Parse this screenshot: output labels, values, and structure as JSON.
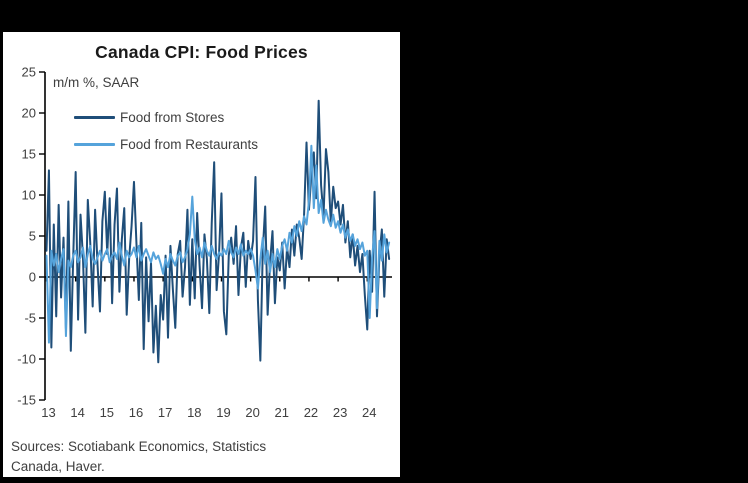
{
  "panel": {
    "background": "#ffffff",
    "surround_color": "#000000"
  },
  "chart_data": {
    "type": "line",
    "title": "Canada CPI: Food Prices",
    "units_label": "m/m %, SAAR",
    "xlabel": "",
    "ylabel": "m/m %, SAAR",
    "ylim": [
      -15,
      25
    ],
    "yticks": [
      25,
      20,
      15,
      10,
      5,
      0,
      -5,
      -10,
      -15
    ],
    "xtick_labels": [
      "13",
      "14",
      "15",
      "16",
      "17",
      "18",
      "19",
      "20",
      "21",
      "22",
      "23",
      "24"
    ],
    "frequency": "monthly",
    "x_start": "2013-01",
    "x_end": "2024-10",
    "grid": false,
    "legend_position": "top-left-inside",
    "axis_color": "#000000",
    "text_color": "#404040",
    "series": [
      {
        "name": "Food from Stores",
        "color": "#1F4E79",
        "values": [
          3.2,
          13.0,
          -8.6,
          6.4,
          -4.8,
          8.8,
          -2.5,
          4.8,
          -6.3,
          9.2,
          -9.0,
          2.5,
          12.8,
          -5.2,
          7.6,
          2.4,
          -6.8,
          9.4,
          4.2,
          -3.6,
          8.2,
          1.5,
          -4.2,
          6.8,
          10.4,
          2.8,
          9.6,
          -3.2,
          6.4,
          10.8,
          -1.8,
          4.6,
          8.4,
          -4.6,
          2.2,
          6.2,
          11.6,
          4.2,
          -2.8,
          6.6,
          -8.8,
          2.4,
          -5.4,
          1.8,
          -9.2,
          -3.5,
          -10.4,
          -2.2,
          -5.2,
          2.6,
          -7.4,
          3.8,
          -1.5,
          -6.2,
          2.8,
          4.4,
          -2.4,
          1.2,
          8.2,
          -3.4,
          4.6,
          -2.6,
          7.8,
          1.4,
          -3.8,
          5.2,
          2.2,
          -4.4,
          6.6,
          14.0,
          -1.6,
          2.8,
          10.2,
          -4.2,
          -7.0,
          2.6,
          4.8,
          1.6,
          6.2,
          -2.2,
          3.6,
          5.4,
          -1.2,
          4.4,
          2.2,
          4.4,
          12.2,
          -2.8,
          -10.2,
          3.2,
          8.6,
          -4.6,
          1.8,
          5.6,
          -3.2,
          2.4,
          0.8,
          4.2,
          -1.4,
          3.6,
          1.2,
          5.8,
          2.6,
          6.4,
          4.8,
          2.2,
          7.6,
          16.4,
          8.2,
          12.4,
          15.2,
          9.6,
          21.5,
          11.2,
          7.4,
          15.6,
          12.8,
          6.6,
          11.0,
          8.4,
          9.2,
          6.4,
          8.8,
          4.2,
          6.8,
          2.4,
          5.2,
          1.4,
          3.8,
          0.6,
          2.8,
          -2.2,
          -6.4,
          3.2,
          -1.8,
          10.4,
          -4.8,
          2.6,
          5.8,
          -2.4,
          4.6,
          2.2
        ]
      },
      {
        "name": "Food from Restaurants",
        "color": "#55A3DB",
        "values": [
          2.6,
          -8.0,
          3.2,
          1.4,
          2.8,
          0.6,
          2.2,
          3.4,
          -7.2,
          2.0,
          1.2,
          2.6,
          3.2,
          1.8,
          2.4,
          3.6,
          1.2,
          2.8,
          3.8,
          2.2,
          1.6,
          2.4,
          3.2,
          2.0,
          2.8,
          3.4,
          1.8,
          2.6,
          3.0,
          2.2,
          4.2,
          2.6,
          1.4,
          3.2,
          2.4,
          2.8,
          3.6,
          2.4,
          3.8,
          2.0,
          2.8,
          3.4,
          2.6,
          1.8,
          3.0,
          2.2,
          2.6,
          1.6,
          0.4,
          2.2,
          1.2,
          2.8,
          2.0,
          1.4,
          2.6,
          3.0,
          1.8,
          2.4,
          3.4,
          5.2,
          9.8,
          4.6,
          2.8,
          3.6,
          2.4,
          4.2,
          3.2,
          2.6,
          3.8,
          2.8,
          2.2,
          3.0,
          2.6,
          3.4,
          2.8,
          4.4,
          3.0,
          2.4,
          3.6,
          2.8,
          4.0,
          2.6,
          3.2,
          2.8,
          3.4,
          2.6,
          0.8,
          -1.4,
          2.2,
          4.8,
          1.6,
          3.2,
          0.6,
          2.8,
          1.2,
          3.4,
          2.2,
          3.8,
          4.6,
          3.2,
          5.4,
          4.2,
          6.2,
          5.0,
          6.8,
          5.6,
          7.4,
          6.4,
          9.2,
          16.0,
          8.4,
          13.6,
          7.8,
          9.4,
          6.6,
          8.2,
          7.0,
          6.2,
          7.6,
          6.0,
          6.8,
          5.4,
          6.4,
          4.8,
          5.8,
          4.4,
          5.2,
          3.8,
          4.6,
          3.4,
          4.2,
          2.6,
          3.2,
          -5.0,
          2.4,
          5.6,
          -3.8,
          4.4,
          2.0,
          5.2,
          3.0,
          4.2
        ]
      }
    ],
    "source_lines": [
      "Sources: Scotiabank Economics, Statistics",
      "Canada, Haver."
    ]
  }
}
